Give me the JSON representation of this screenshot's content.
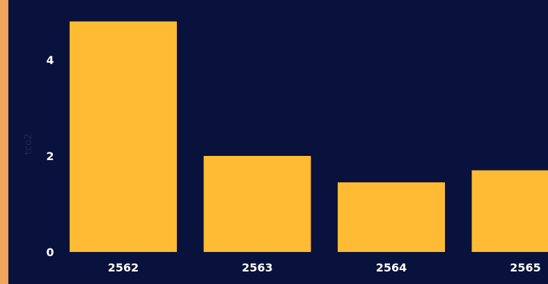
{
  "theme": {
    "background": "#08123c",
    "accent_strip": "#f0a45c",
    "bar_color": "#ffbb33",
    "tick_label_color": "#ffffff",
    "axis_label_color": "#1d2a52"
  },
  "chart_data": {
    "type": "bar",
    "categories": [
      "2562",
      "2563",
      "2564",
      "2565"
    ],
    "values": [
      4.8,
      2.0,
      1.45,
      1.7
    ],
    "title": "",
    "xlabel": "",
    "ylabel": "tco2",
    "ylim": [
      0,
      5
    ],
    "yticks": [
      0,
      2,
      4
    ],
    "grid": false,
    "legend": "none"
  }
}
